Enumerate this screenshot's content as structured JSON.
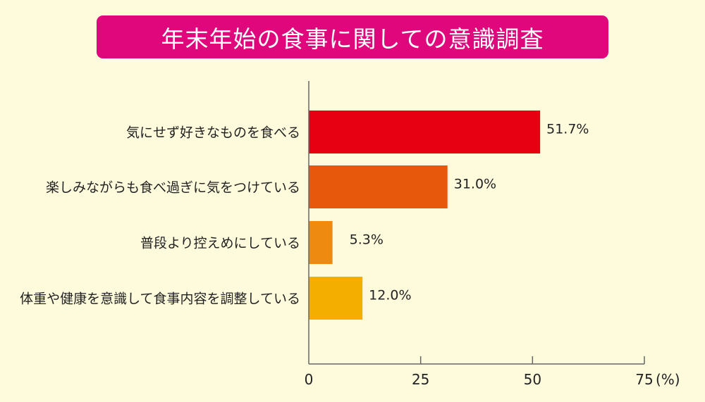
{
  "chart_data": {
    "type": "bar",
    "orientation": "horizontal",
    "title": "年末年始の食事に関しての意識調査",
    "categories": [
      "気にせず好きなものを食べる",
      "楽しみながらも食べ過ぎに気をつけている",
      "普段より控えめにしている",
      "体重や健康を意識して食事内容を調整している"
    ],
    "values": [
      51.7,
      31.0,
      5.3,
      12.0
    ],
    "value_labels": [
      "51.7%",
      "31.0%",
      "5.3%",
      "12.0%"
    ],
    "colors": [
      "#e60012",
      "#e8580c",
      "#ee8a10",
      "#f4ae00"
    ],
    "xlim": [
      0,
      75
    ],
    "xticks": [
      "0",
      "25",
      "50",
      "75"
    ],
    "xunit": "(%)",
    "grid": false
  }
}
